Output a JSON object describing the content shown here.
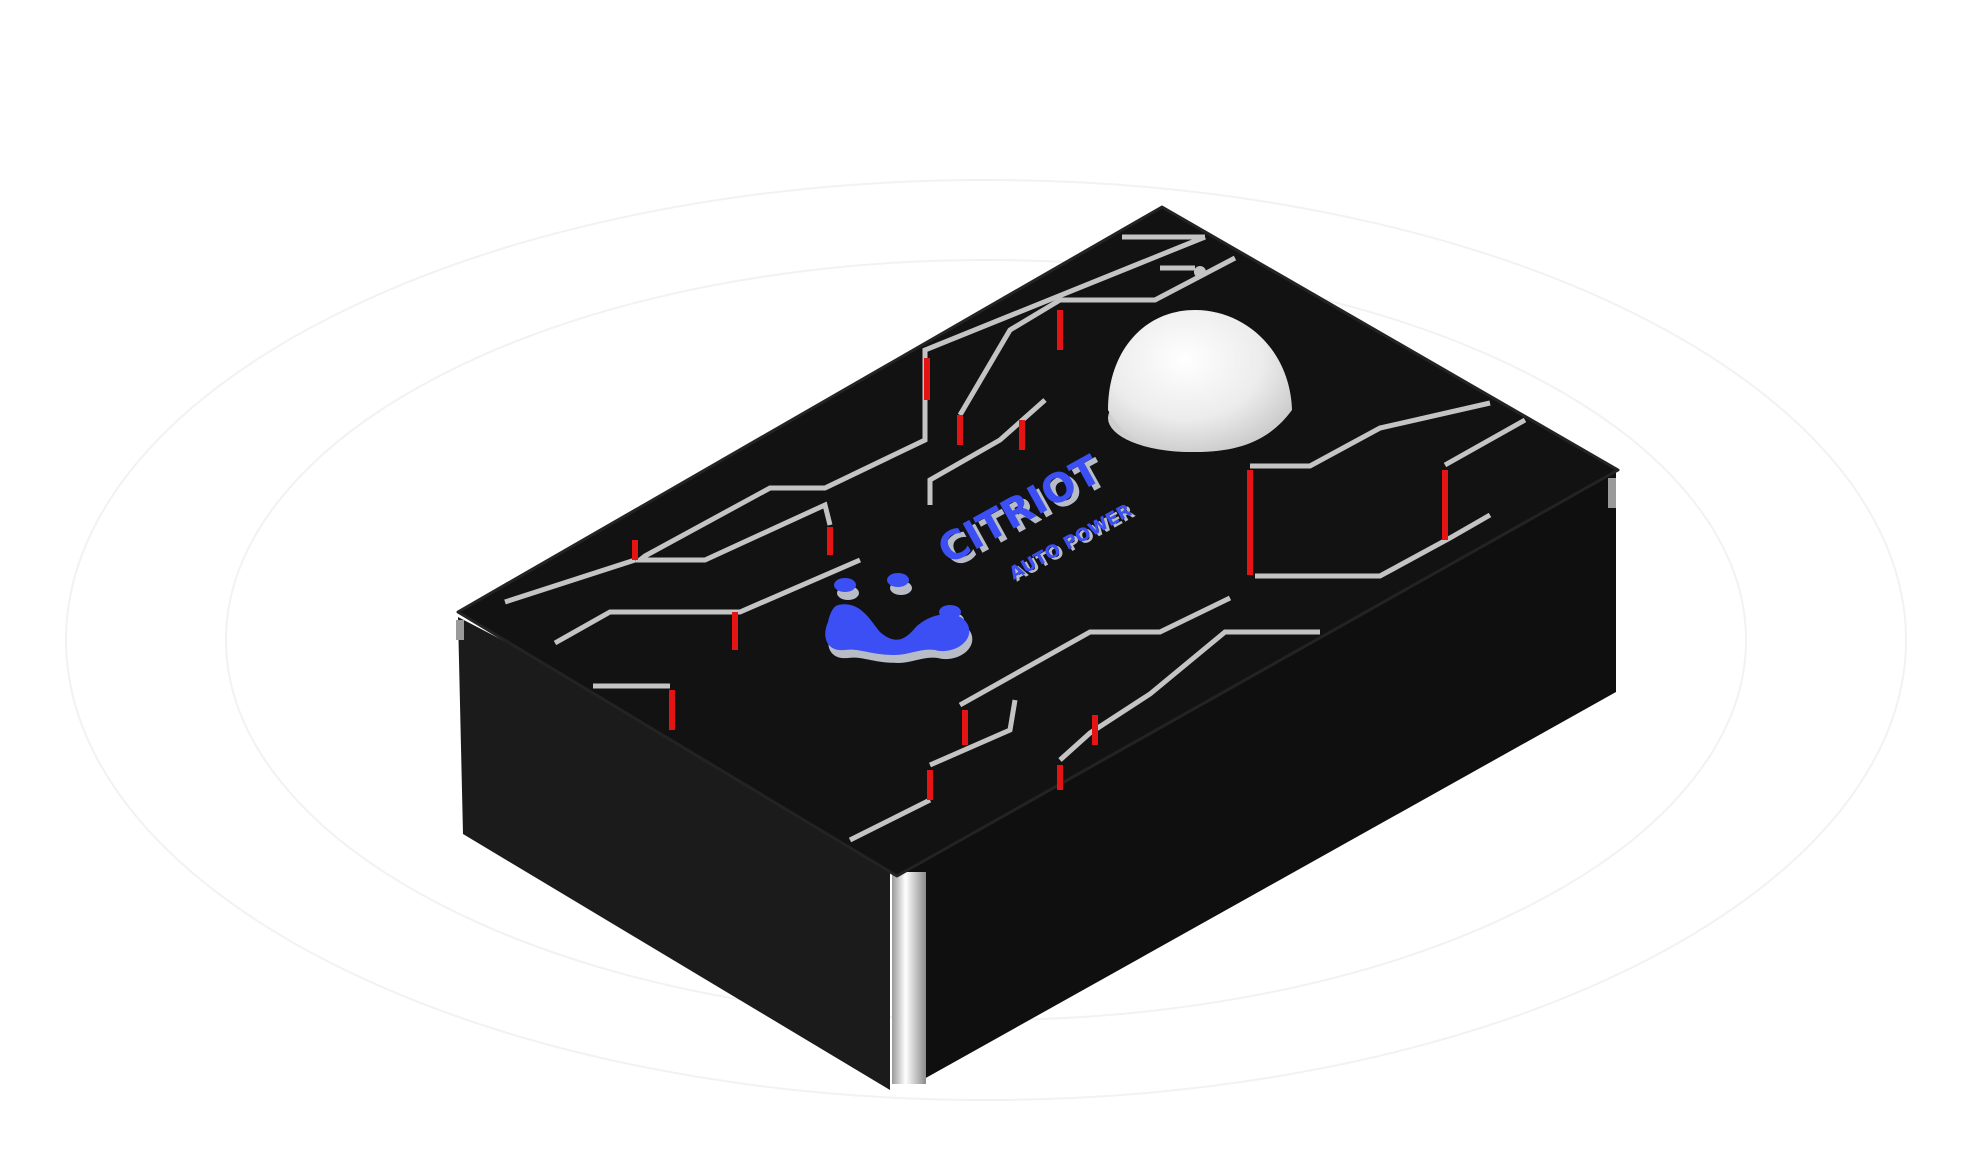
{
  "product": {
    "brand_name": "CITRIOT",
    "brand_tagline": "AUTO POWER",
    "logo_icon": "citriot-droplet-logo-icon",
    "dome_icon": "sensor-dome-icon"
  },
  "colors": {
    "background": "#ffffff",
    "enclosure_top": "#111111",
    "enclosure_side_left": "#1a1a1a",
    "enclosure_side_right": "#0e0e0e",
    "trace_grey": "#c4c4c4",
    "trace_red": "#e41414",
    "logo_blue": "#3b4ff5",
    "dome_white": "#f0f0f0"
  }
}
